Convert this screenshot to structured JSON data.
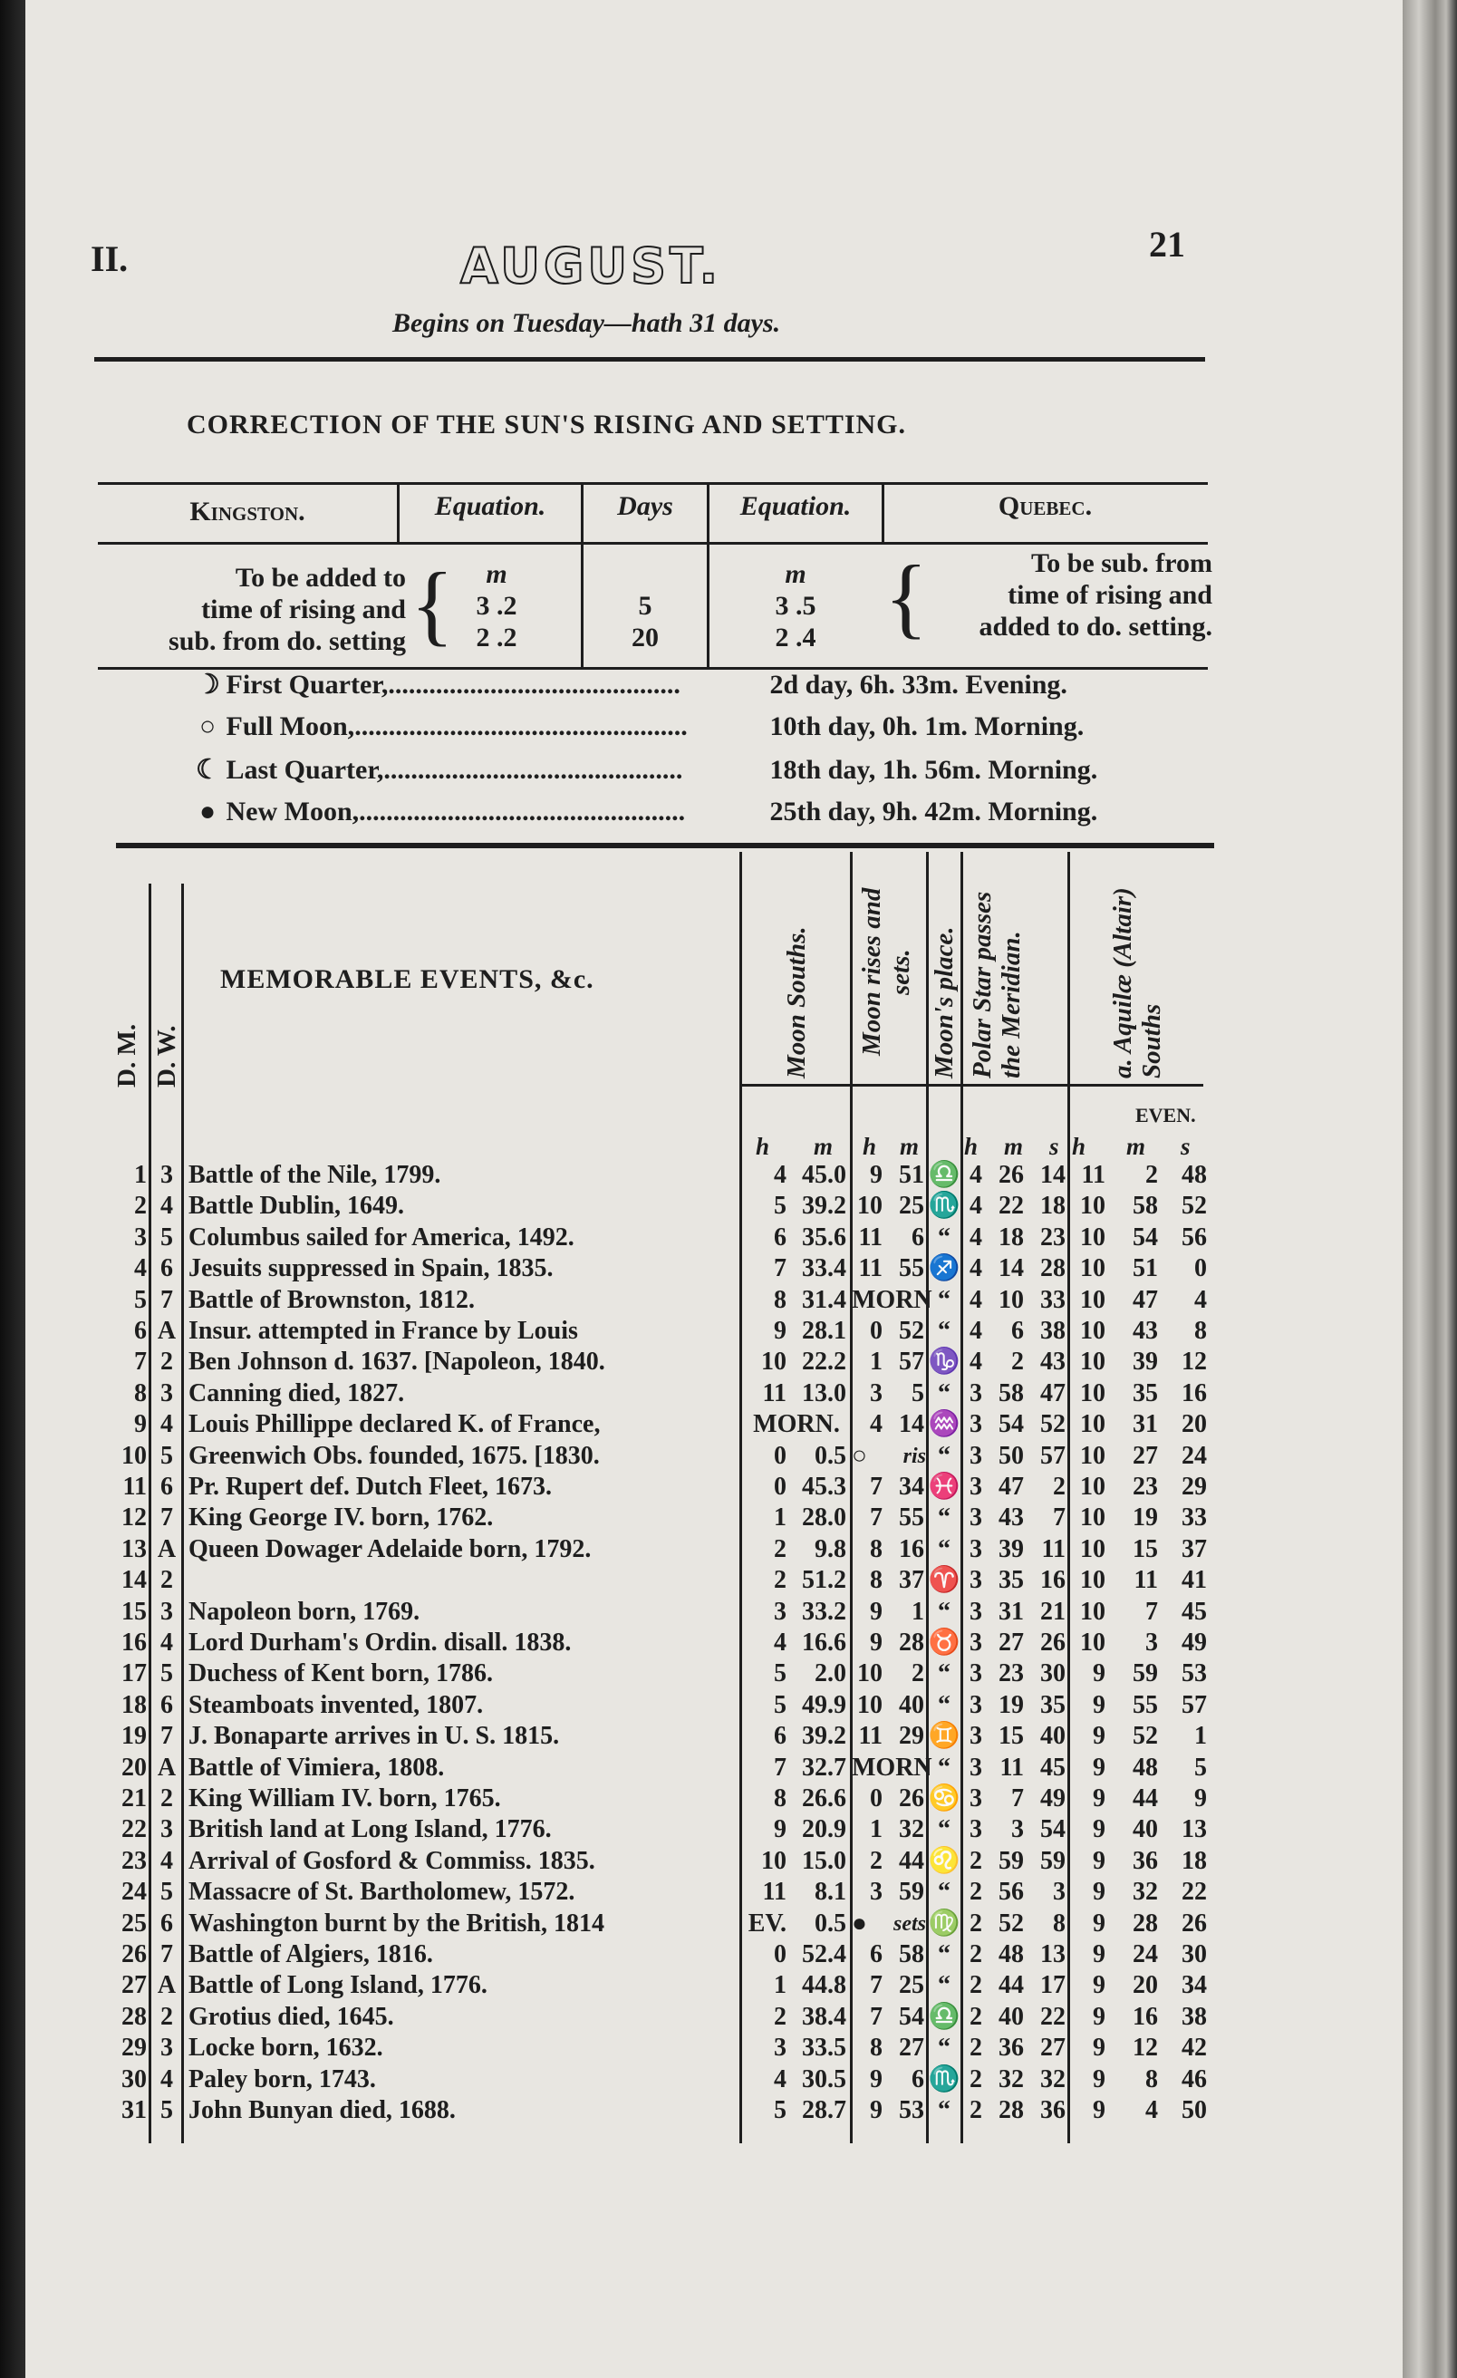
{
  "header": {
    "left_folio": "II.",
    "month": "AUGUST.",
    "page_number": "21",
    "subtitle": "Begins on Tuesday—hath 31 days."
  },
  "correction": {
    "title": "CORRECTION OF THE SUN'S RISING AND SETTING.",
    "columns": [
      "Kingston.",
      "Equation.",
      "Days",
      "Equation.",
      "Quebec."
    ],
    "kingston_note": [
      "To be added to",
      "time of rising and",
      "sub. from do. setting"
    ],
    "unit_m": "m",
    "kingston_eq": [
      "3 .2",
      "2 .2"
    ],
    "days": [
      "5",
      "20"
    ],
    "quebec_eq": [
      "3 .5",
      "2 .4"
    ],
    "quebec_note": [
      "To be sub. from",
      "time of rising and",
      "added to do. setting."
    ]
  },
  "phases": [
    {
      "icon": "first-quarter-moon",
      "glyph": "☽",
      "label": "First Quarter,",
      "dots": "...........................................",
      "value": "2d  day, 6h. 33m. Evening."
    },
    {
      "icon": "full-moon",
      "glyph": "○",
      "label": "Full Moon,",
      "dots": ".................................................",
      "value": "10th day, 0h.  1m. Morning."
    },
    {
      "icon": "last-quarter-moon",
      "glyph": "☾",
      "label": "Last Quarter,",
      "dots": "............................................",
      "value": "18th day, 1h. 56m. Morning."
    },
    {
      "icon": "new-moon",
      "glyph": "●",
      "label": "New Moon,",
      "dots": "................................................",
      "value": "25th day, 9h. 42m. Morning."
    }
  ],
  "table": {
    "headers": {
      "dm": "D. M.",
      "dw": "D. W.",
      "events": "MEMORABLE EVENTS, &c.",
      "moon_souths": "Moon Souths.",
      "moon_rises": "Moon rises and sets.",
      "moon_place": "Moon's place.",
      "polar": "Polar Star passes the Meridian.",
      "altair": "a. Aquilæ (Altair) Souths"
    },
    "even_label": "EVEN.",
    "units": {
      "h": "h",
      "m": "m",
      "s": "s"
    },
    "rows": [
      {
        "dm": "1",
        "dw": "3",
        "event": "Battle of the Nile, 1799.",
        "ms": [
          "4",
          "45.0"
        ],
        "mr": [
          "9",
          "51"
        ],
        "place": "♎",
        "polar": [
          "4",
          "26",
          "14"
        ],
        "altair": [
          "11",
          "2",
          "48"
        ]
      },
      {
        "dm": "2",
        "dw": "4",
        "event": "Battle Dublin, 1649.",
        "ms": [
          "5",
          "39.2"
        ],
        "mr": [
          "10",
          "25"
        ],
        "place": "♏",
        "polar": [
          "4",
          "22",
          "18"
        ],
        "altair": [
          "10",
          "58",
          "52"
        ]
      },
      {
        "dm": "3",
        "dw": "5",
        "event": "Columbus sailed for America, 1492.",
        "ms": [
          "6",
          "35.6"
        ],
        "mr": [
          "11",
          "6"
        ],
        "place": "“",
        "polar": [
          "4",
          "18",
          "23"
        ],
        "altair": [
          "10",
          "54",
          "56"
        ]
      },
      {
        "dm": "4",
        "dw": "6",
        "event": "Jesuits suppressed in Spain, 1835.",
        "ms": [
          "7",
          "33.4"
        ],
        "mr": [
          "11",
          "55"
        ],
        "place": "♐",
        "polar": [
          "4",
          "14",
          "28"
        ],
        "altair": [
          "10",
          "51",
          "0"
        ]
      },
      {
        "dm": "5",
        "dw": "7",
        "event": "Battle of Brownston, 1812.",
        "ms": [
          "8",
          "31.4"
        ],
        "mr": [
          "MORN",
          ""
        ],
        "place": "“",
        "polar": [
          "4",
          "10",
          "33"
        ],
        "altair": [
          "10",
          "47",
          "4"
        ]
      },
      {
        "dm": "6",
        "dw": "A",
        "event": "Insur. attempted in France by Louis",
        "ms": [
          "9",
          "28.1"
        ],
        "mr": [
          "0",
          "52"
        ],
        "place": "“",
        "polar": [
          "4",
          "6",
          "38"
        ],
        "altair": [
          "10",
          "43",
          "8"
        ]
      },
      {
        "dm": "7",
        "dw": "2",
        "event": "Ben Johnson d. 1637. [Napoleon, 1840.",
        "ms": [
          "10",
          "22.2"
        ],
        "mr": [
          "1",
          "57"
        ],
        "place": "♑",
        "polar": [
          "4",
          "2",
          "43"
        ],
        "altair": [
          "10",
          "39",
          "12"
        ]
      },
      {
        "dm": "8",
        "dw": "3",
        "event": "Canning died, 1827.",
        "ms": [
          "11",
          "13.0"
        ],
        "mr": [
          "3",
          "5"
        ],
        "place": "“",
        "polar": [
          "3",
          "58",
          "47"
        ],
        "altair": [
          "10",
          "35",
          "16"
        ]
      },
      {
        "dm": "9",
        "dw": "4",
        "event": "Louis Phillippe declared K. of France,",
        "ms": [
          "MORN.",
          ""
        ],
        "mr": [
          "4",
          "14"
        ],
        "place": "♒",
        "polar": [
          "3",
          "54",
          "52"
        ],
        "altair": [
          "10",
          "31",
          "20"
        ]
      },
      {
        "dm": "10",
        "dw": "5",
        "event": "Greenwich Obs. founded, 1675. [1830.",
        "ms": [
          "0",
          "0.5"
        ],
        "mr": [
          "○",
          "ris"
        ],
        "place": "“",
        "polar": [
          "3",
          "50",
          "57"
        ],
        "altair": [
          "10",
          "27",
          "24"
        ]
      },
      {
        "dm": "11",
        "dw": "6",
        "event": "Pr. Rupert def. Dutch Fleet, 1673.",
        "ms": [
          "0",
          "45.3"
        ],
        "mr": [
          "7",
          "34"
        ],
        "place": "♓",
        "polar": [
          "3",
          "47",
          "2"
        ],
        "altair": [
          "10",
          "23",
          "29"
        ]
      },
      {
        "dm": "12",
        "dw": "7",
        "event": "King George IV. born, 1762.",
        "ms": [
          "1",
          "28.0"
        ],
        "mr": [
          "7",
          "55"
        ],
        "place": "“",
        "polar": [
          "3",
          "43",
          "7"
        ],
        "altair": [
          "10",
          "19",
          "33"
        ]
      },
      {
        "dm": "13",
        "dw": "A",
        "event": "Queen Dowager Adelaide born, 1792.",
        "ms": [
          "2",
          "9.8"
        ],
        "mr": [
          "8",
          "16"
        ],
        "place": "“",
        "polar": [
          "3",
          "39",
          "11"
        ],
        "altair": [
          "10",
          "15",
          "37"
        ]
      },
      {
        "dm": "14",
        "dw": "2",
        "event": "",
        "ms": [
          "2",
          "51.2"
        ],
        "mr": [
          "8",
          "37"
        ],
        "place": "♈",
        "polar": [
          "3",
          "35",
          "16"
        ],
        "altair": [
          "10",
          "11",
          "41"
        ]
      },
      {
        "dm": "15",
        "dw": "3",
        "event": "Napoleon born, 1769.",
        "ms": [
          "3",
          "33.2"
        ],
        "mr": [
          "9",
          "1"
        ],
        "place": "“",
        "polar": [
          "3",
          "31",
          "21"
        ],
        "altair": [
          "10",
          "7",
          "45"
        ]
      },
      {
        "dm": "16",
        "dw": "4",
        "event": "Lord Durham's Ordin. disall. 1838.",
        "ms": [
          "4",
          "16.6"
        ],
        "mr": [
          "9",
          "28"
        ],
        "place": "♉",
        "polar": [
          "3",
          "27",
          "26"
        ],
        "altair": [
          "10",
          "3",
          "49"
        ]
      },
      {
        "dm": "17",
        "dw": "5",
        "event": "Duchess of Kent born, 1786.",
        "ms": [
          "5",
          "2.0"
        ],
        "mr": [
          "10",
          "2"
        ],
        "place": "“",
        "polar": [
          "3",
          "23",
          "30"
        ],
        "altair": [
          "9",
          "59",
          "53"
        ]
      },
      {
        "dm": "18",
        "dw": "6",
        "event": "Steamboats invented, 1807.",
        "ms": [
          "5",
          "49.9"
        ],
        "mr": [
          "10",
          "40"
        ],
        "place": "“",
        "polar": [
          "3",
          "19",
          "35"
        ],
        "altair": [
          "9",
          "55",
          "57"
        ]
      },
      {
        "dm": "19",
        "dw": "7",
        "event": "J. Bonaparte arrives in U. S. 1815.",
        "ms": [
          "6",
          "39.2"
        ],
        "mr": [
          "11",
          "29"
        ],
        "place": "♊",
        "polar": [
          "3",
          "15",
          "40"
        ],
        "altair": [
          "9",
          "52",
          "1"
        ]
      },
      {
        "dm": "20",
        "dw": "A",
        "event": "Battle of Vimiera, 1808.",
        "ms": [
          "7",
          "32.7"
        ],
        "mr": [
          "MORN",
          ""
        ],
        "place": "“",
        "polar": [
          "3",
          "11",
          "45"
        ],
        "altair": [
          "9",
          "48",
          "5"
        ]
      },
      {
        "dm": "21",
        "dw": "2",
        "event": "King William IV. born, 1765.",
        "ms": [
          "8",
          "26.6"
        ],
        "mr": [
          "0",
          "26"
        ],
        "place": "♋",
        "polar": [
          "3",
          "7",
          "49"
        ],
        "altair": [
          "9",
          "44",
          "9"
        ]
      },
      {
        "dm": "22",
        "dw": "3",
        "event": "British land at Long Island, 1776.",
        "ms": [
          "9",
          "20.9"
        ],
        "mr": [
          "1",
          "32"
        ],
        "place": "“",
        "polar": [
          "3",
          "3",
          "54"
        ],
        "altair": [
          "9",
          "40",
          "13"
        ]
      },
      {
        "dm": "23",
        "dw": "4",
        "event": "Arrival of Gosford & Commiss. 1835.",
        "ms": [
          "10",
          "15.0"
        ],
        "mr": [
          "2",
          "44"
        ],
        "place": "♌",
        "polar": [
          "2",
          "59",
          "59"
        ],
        "altair": [
          "9",
          "36",
          "18"
        ]
      },
      {
        "dm": "24",
        "dw": "5",
        "event": "Massacre of St. Bartholomew, 1572.",
        "ms": [
          "11",
          "8.1"
        ],
        "mr": [
          "3",
          "59"
        ],
        "place": "“",
        "polar": [
          "2",
          "56",
          "3"
        ],
        "altair": [
          "9",
          "32",
          "22"
        ]
      },
      {
        "dm": "25",
        "dw": "6",
        "event": "Washington burnt by the British, 1814",
        "ms": [
          "EV.",
          "0.5"
        ],
        "mr": [
          "●",
          "sets"
        ],
        "place": "♍",
        "polar": [
          "2",
          "52",
          "8"
        ],
        "altair": [
          "9",
          "28",
          "26"
        ]
      },
      {
        "dm": "26",
        "dw": "7",
        "event": "Battle of Algiers, 1816.",
        "ms": [
          "0",
          "52.4"
        ],
        "mr": [
          "6",
          "58"
        ],
        "place": "“",
        "polar": [
          "2",
          "48",
          "13"
        ],
        "altair": [
          "9",
          "24",
          "30"
        ]
      },
      {
        "dm": "27",
        "dw": "A",
        "event": "Battle of Long Island, 1776.",
        "ms": [
          "1",
          "44.8"
        ],
        "mr": [
          "7",
          "25"
        ],
        "place": "“",
        "polar": [
          "2",
          "44",
          "17"
        ],
        "altair": [
          "9",
          "20",
          "34"
        ]
      },
      {
        "dm": "28",
        "dw": "2",
        "event": "Grotius died, 1645.",
        "ms": [
          "2",
          "38.4"
        ],
        "mr": [
          "7",
          "54"
        ],
        "place": "♎",
        "polar": [
          "2",
          "40",
          "22"
        ],
        "altair": [
          "9",
          "16",
          "38"
        ]
      },
      {
        "dm": "29",
        "dw": "3",
        "event": "Locke born, 1632.",
        "ms": [
          "3",
          "33.5"
        ],
        "mr": [
          "8",
          "27"
        ],
        "place": "“",
        "polar": [
          "2",
          "36",
          "27"
        ],
        "altair": [
          "9",
          "12",
          "42"
        ]
      },
      {
        "dm": "30",
        "dw": "4",
        "event": "Paley born, 1743.",
        "ms": [
          "4",
          "30.5"
        ],
        "mr": [
          "9",
          "6"
        ],
        "place": "♏",
        "polar": [
          "2",
          "32",
          "32"
        ],
        "altair": [
          "9",
          "8",
          "46"
        ]
      },
      {
        "dm": "31",
        "dw": "5",
        "event": "John Bunyan died, 1688.",
        "ms": [
          "5",
          "28.7"
        ],
        "mr": [
          "9",
          "53"
        ],
        "place": "“",
        "polar": [
          "2",
          "28",
          "36"
        ],
        "altair": [
          "9",
          "4",
          "50"
        ]
      }
    ]
  }
}
